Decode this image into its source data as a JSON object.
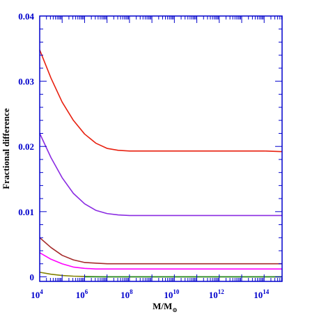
{
  "chart_data": {
    "type": "line",
    "title": "",
    "xlabel": {
      "base": "M/M",
      "subscript": "⊙"
    },
    "ylabel": "Fractional difference",
    "x_scale": "log",
    "xlim": [
      10000,
      630000000000000
    ],
    "ylim": [
      -0.0007,
      0.04
    ],
    "x_ticks": [
      {
        "value": 10000,
        "base": "10",
        "exp": "4"
      },
      {
        "value": 1000000,
        "base": "10",
        "exp": "6"
      },
      {
        "value": 100000000,
        "base": "10",
        "exp": "8"
      },
      {
        "value": 10000000000,
        "base": "10",
        "exp": "10"
      },
      {
        "value": 1000000000000,
        "base": "10",
        "exp": "12"
      },
      {
        "value": 100000000000000,
        "base": "10",
        "exp": "14"
      }
    ],
    "y_ticks": [
      {
        "value": 0,
        "label": "0"
      },
      {
        "value": 0.01,
        "label": "0.01"
      },
      {
        "value": 0.02,
        "label": "0.02"
      },
      {
        "value": 0.03,
        "label": "0.03"
      },
      {
        "value": 0.04,
        "label": "0.04"
      }
    ],
    "grid": false,
    "series": [
      {
        "color": "#e8200f",
        "x": [
          10000,
          31623,
          100000,
          316228,
          1000000,
          3162278,
          10000000,
          31622777,
          100000000,
          1000000000,
          10000000000,
          100000000000,
          1000000000000,
          10000000000000,
          100000000000000,
          630000000000000
        ],
        "y": [
          0.0348,
          0.0305,
          0.0268,
          0.024,
          0.0219,
          0.0205,
          0.0197,
          0.0194,
          0.0193,
          0.0193,
          0.0193,
          0.0193,
          0.0193,
          0.0193,
          0.0193,
          0.0192
        ]
      },
      {
        "color": "#8a2be2",
        "x": [
          10000,
          31623,
          100000,
          316228,
          1000000,
          3162278,
          10000000,
          31622777,
          100000000,
          1000000000,
          10000000000,
          100000000000,
          1000000000000,
          10000000000000,
          100000000000000,
          630000000000000
        ],
        "y": [
          0.022,
          0.0183,
          0.0152,
          0.0128,
          0.0112,
          0.0102,
          0.0097,
          0.0095,
          0.0094,
          0.0094,
          0.0094,
          0.0094,
          0.0094,
          0.0094,
          0.0094,
          0.0094
        ]
      },
      {
        "color": "#a52a2a",
        "x": [
          10000,
          31623,
          100000,
          316228,
          1000000,
          3162278,
          10000000,
          100000000,
          1000000000,
          10000000000,
          1000000000000,
          100000000000000,
          630000000000000
        ],
        "y": [
          0.006,
          0.0045,
          0.0033,
          0.0026,
          0.0022,
          0.0021,
          0.002,
          0.002,
          0.002,
          0.002,
          0.002,
          0.002,
          0.002
        ]
      },
      {
        "color": "#ff00ff",
        "x": [
          10000,
          31623,
          100000,
          316228,
          1000000,
          3162278,
          10000000,
          100000000,
          1000000000,
          10000000000,
          1000000000000,
          100000000000000,
          630000000000000
        ],
        "y": [
          0.0037,
          0.0027,
          0.002,
          0.0015,
          0.0013,
          0.0012,
          0.0012,
          0.0012,
          0.0012,
          0.0012,
          0.0012,
          0.0012,
          0.0012
        ]
      },
      {
        "color": "#808000",
        "x": [
          10000,
          31623,
          100000,
          316228,
          1000000,
          10000000,
          100000000,
          10000000000,
          1000000000000,
          100000000000000,
          630000000000000
        ],
        "y": [
          0.0007,
          0.0004,
          0.0002,
          0.0001,
          5e-05,
          0.0,
          0.0,
          0.0,
          0.0,
          0.0,
          0.0
        ]
      },
      {
        "color": "#228b22",
        "x": [
          1000000,
          10000000,
          100000000,
          10000000000,
          1000000000000,
          100000000000000,
          630000000000000
        ],
        "y": [
          0.0,
          0.0,
          0.0,
          0.0,
          0.0,
          0.0,
          0.0
        ]
      }
    ]
  }
}
